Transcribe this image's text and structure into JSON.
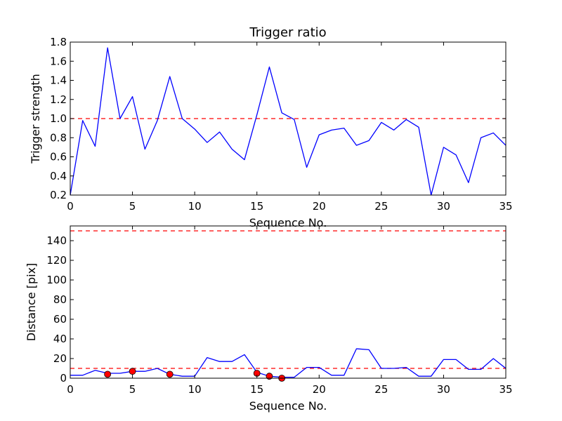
{
  "chart_data": [
    {
      "type": "line",
      "title": "Trigger ratio",
      "xlabel": "Sequence No.",
      "ylabel": "Trigger strength",
      "xlim": [
        0,
        35
      ],
      "ylim": [
        0.2,
        1.8
      ],
      "xticks": [
        0,
        5,
        10,
        15,
        20,
        25,
        30,
        35
      ],
      "yticks": [
        0.2,
        0.4,
        0.6,
        0.8,
        1.0,
        1.2,
        1.4,
        1.6,
        1.8
      ],
      "ytick_labels": [
        "0.2",
        "0.4",
        "0.6",
        "0.8",
        "1.0",
        "1.2",
        "1.4",
        "1.6",
        "1.8"
      ],
      "grid": false,
      "series": [
        {
          "color": "#0000ff",
          "style": "solid",
          "x": [
            0,
            1,
            2,
            3,
            4,
            5,
            6,
            7,
            8,
            9,
            10,
            11,
            12,
            13,
            14,
            15,
            16,
            17,
            18,
            19,
            20,
            21,
            22,
            23,
            24,
            25,
            26,
            27,
            28,
            29,
            30,
            31,
            32,
            33,
            34,
            35
          ],
          "y": [
            0.2,
            0.98,
            0.71,
            1.74,
            1.0,
            1.23,
            0.68,
            0.98,
            1.44,
            1.0,
            0.89,
            0.75,
            0.86,
            0.68,
            0.57,
            1.04,
            1.54,
            1.06,
            0.99,
            0.49,
            0.83,
            0.88,
            0.9,
            0.72,
            0.77,
            0.96,
            0.88,
            0.99,
            0.91,
            0.2,
            0.7,
            0.62,
            0.33,
            0.8,
            0.85,
            0.72
          ]
        }
      ],
      "reference_lines": [
        {
          "y": 1.0,
          "color": "#ff0000",
          "style": "dashed"
        }
      ]
    },
    {
      "type": "line",
      "title": "",
      "xlabel": "Sequence No.",
      "ylabel": "Distance [pix]",
      "xlim": [
        0,
        35
      ],
      "ylim": [
        0,
        155
      ],
      "xticks": [
        0,
        5,
        10,
        15,
        20,
        25,
        30,
        35
      ],
      "yticks": [
        0,
        20,
        40,
        60,
        80,
        100,
        120,
        140
      ],
      "ytick_labels": [
        "0",
        "20",
        "40",
        "60",
        "80",
        "100",
        "120",
        "140"
      ],
      "grid": false,
      "series": [
        {
          "color": "#0000ff",
          "style": "solid",
          "x": [
            0,
            1,
            2,
            3,
            4,
            5,
            6,
            7,
            8,
            9,
            10,
            11,
            12,
            13,
            14,
            15,
            16,
            17,
            18,
            19,
            20,
            21,
            22,
            23,
            24,
            25,
            26,
            27,
            28,
            29,
            30,
            31,
            32,
            33,
            34,
            35
          ],
          "y": [
            3,
            3,
            8,
            5,
            5,
            7,
            7,
            10,
            4,
            2,
            2,
            21,
            17,
            17,
            24,
            6,
            2,
            1,
            1,
            11,
            11,
            3,
            3,
            30,
            29,
            10,
            10,
            11,
            2,
            2,
            19,
            19,
            9,
            9,
            20,
            10
          ]
        },
        {
          "color": "#ff0000",
          "style": "markers",
          "x": [
            3,
            5,
            8,
            15,
            16,
            17
          ],
          "y": [
            4,
            7,
            4,
            5,
            2,
            0
          ]
        }
      ],
      "reference_lines": [
        {
          "y": 150,
          "color": "#ff0000",
          "style": "dashed"
        },
        {
          "y": 10,
          "color": "#ff0000",
          "style": "dashed"
        }
      ]
    }
  ]
}
